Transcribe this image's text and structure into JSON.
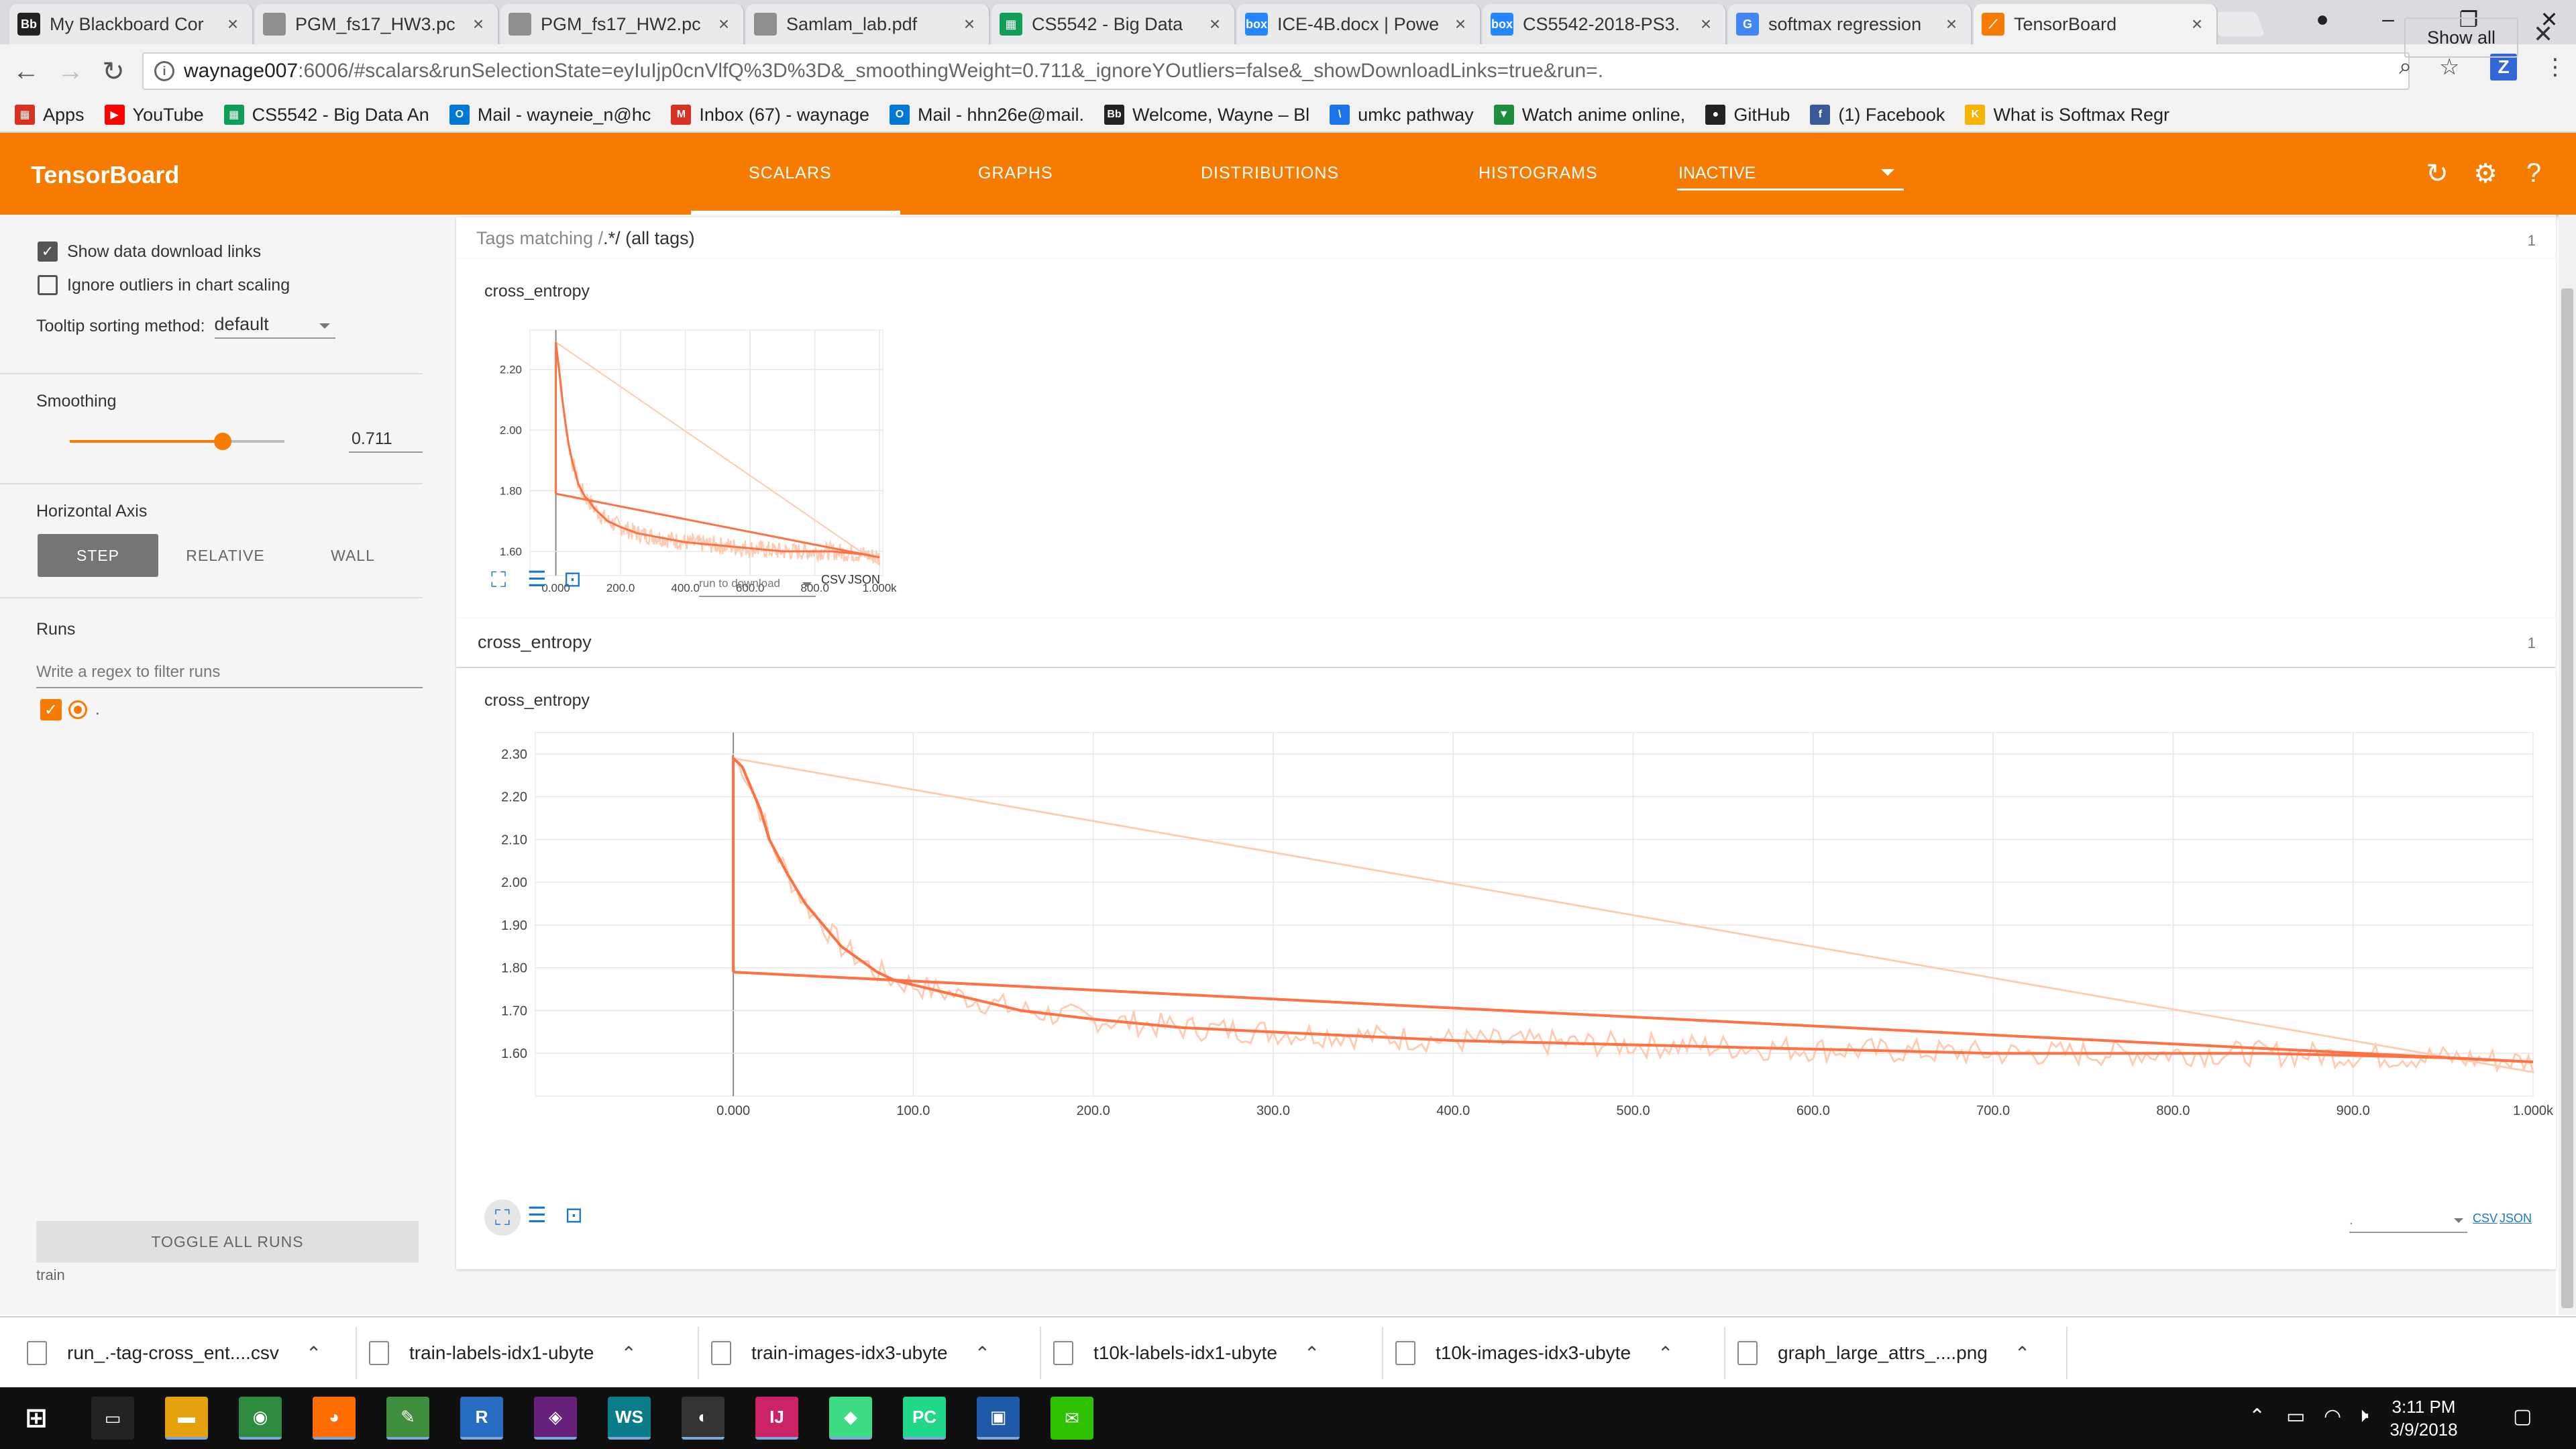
{
  "browser": {
    "tabs": [
      {
        "title": "My Blackboard Cor",
        "fav_text": "Bb",
        "fav_color": "#222222",
        "active": false
      },
      {
        "title": "PGM_fs17_HW3.pc",
        "fav_text": "",
        "fav_color": "#8e8e8e",
        "active": false
      },
      {
        "title": "PGM_fs17_HW2.pc",
        "fav_text": "",
        "fav_color": "#8e8e8e",
        "active": false
      },
      {
        "title": "Samlam_lab.pdf",
        "fav_text": "",
        "fav_color": "#8e8e8e",
        "active": false
      },
      {
        "title": "CS5542 - Big Data",
        "fav_text": "▦",
        "fav_color": "#0f9d58",
        "active": false
      },
      {
        "title": "ICE-4B.docx | Powe",
        "fav_text": "box",
        "fav_color": "#2486fc",
        "active": false
      },
      {
        "title": "CS5542-2018-PS3.",
        "fav_text": "box",
        "fav_color": "#2486fc",
        "active": false
      },
      {
        "title": "softmax regression",
        "fav_text": "G",
        "fav_color": "#4285f4",
        "active": false
      },
      {
        "title": "TensorBoard",
        "fav_text": "⟋",
        "fav_color": "#f57c00",
        "active": true
      }
    ],
    "url_host": "waynage007",
    "url_rest": ":6006/#scalars&runSelectionState=eyIuIjp0cnVlfQ%3D%3D&_smoothingWeight=0.711&_ignoreYOutliers=false&_showDownloadLinks=true&run=.",
    "bookmarks": [
      {
        "label": "Apps",
        "icon": "▦",
        "color": "#d93025"
      },
      {
        "label": "YouTube",
        "icon": "▶",
        "color": "#ff0000"
      },
      {
        "label": "CS5542 - Big Data An",
        "icon": "▦",
        "color": "#0f9d58"
      },
      {
        "label": "Mail - wayneie_n@hc",
        "icon": "O",
        "color": "#0078d4"
      },
      {
        "label": "Inbox (67) - waynage",
        "icon": "M",
        "color": "#d93025"
      },
      {
        "label": "Mail - hhn26e@mail.",
        "icon": "O",
        "color": "#0078d4"
      },
      {
        "label": "Welcome, Wayne – Bl",
        "icon": "Bb",
        "color": "#222222"
      },
      {
        "label": "umkc pathway",
        "icon": "\\",
        "color": "#1a73e8"
      },
      {
        "label": "Watch anime online,",
        "icon": "▼",
        "color": "#1e8e3e"
      },
      {
        "label": "GitHub",
        "icon": "●",
        "color": "#222222"
      },
      {
        "label": "(1) Facebook",
        "icon": "f",
        "color": "#3b5998"
      },
      {
        "label": "What is Softmax Regr",
        "icon": "K",
        "color": "#f4b400"
      }
    ]
  },
  "tensorboard": {
    "title": "TensorBoard",
    "tabs": [
      "SCALARS",
      "GRAPHS",
      "DISTRIBUTIONS",
      "HISTOGRAMS"
    ],
    "inactive_label": "INACTIVE"
  },
  "sidebar": {
    "show_download_links": "Show data download links",
    "ignore_outliers": "Ignore outliers in chart scaling",
    "tooltip_label": "Tooltip sorting method:",
    "tooltip_value": "default",
    "smoothing_label": "Smoothing",
    "smoothing_value": "0.711",
    "smoothing_fraction": 0.711,
    "horizontal_axis_label": "Horizontal Axis",
    "axis_options": [
      "STEP",
      "RELATIVE",
      "WALL"
    ],
    "runs_label": "Runs",
    "runs_filter_placeholder": "Write a regex to filter runs",
    "run_name": ".",
    "toggle_all": "TOGGLE ALL RUNS",
    "train_label": "train"
  },
  "main": {
    "tags_prefix": "Tags matching /",
    "tags_regex": ".*",
    "tags_suffix": "/ (all tags)",
    "tags_count": "1",
    "group_title": "cross_entropy",
    "group_count": "1",
    "small_chart_title": "cross_entropy",
    "large_chart_title": "cross_entropy",
    "run_to_download": "run to download",
    "large_select_value": ".",
    "csv": "CSV",
    "json": "JSON"
  },
  "chart_data": [
    {
      "type": "line",
      "title": "cross_entropy",
      "xlabel": "",
      "ylabel": "",
      "xlim": [
        -80,
        1010
      ],
      "ylim": [
        1.52,
        2.33
      ],
      "x_ticks": [
        "0.000",
        "200.0",
        "400.0",
        "600.0",
        "800.0",
        "1.000k"
      ],
      "y_ticks": [
        "1.60",
        "1.80",
        "2.00",
        "2.20"
      ],
      "grid": true,
      "series": [
        {
          "x": [
            0,
            10,
            20,
            30,
            40,
            50,
            60,
            70,
            80,
            90,
            100,
            120,
            140,
            160,
            180,
            200,
            250,
            300,
            350,
            400,
            450,
            500,
            550,
            600,
            650,
            700,
            750,
            800,
            850,
            900,
            950,
            1000
          ],
          "values": [
            2.29,
            2.2,
            2.1,
            2.02,
            1.95,
            1.9,
            1.86,
            1.82,
            1.8,
            1.78,
            1.77,
            1.74,
            1.72,
            1.7,
            1.69,
            1.68,
            1.66,
            1.65,
            1.64,
            1.63,
            1.625,
            1.62,
            1.615,
            1.61,
            1.605,
            1.6,
            1.6,
            1.6,
            1.6,
            1.595,
            1.59,
            1.58
          ]
        }
      ]
    },
    {
      "type": "line",
      "title": "cross_entropy",
      "xlabel": "",
      "ylabel": "",
      "xlim": [
        -110,
        1000
      ],
      "ylim": [
        1.5,
        2.35
      ],
      "x_ticks": [
        "0.000",
        "100.0",
        "200.0",
        "300.0",
        "400.0",
        "500.0",
        "600.0",
        "700.0",
        "800.0",
        "900.0",
        "1.000k"
      ],
      "y_ticks": [
        "1.60",
        "1.70",
        "1.80",
        "1.90",
        "2.00",
        "2.10",
        "2.20",
        "2.30"
      ],
      "grid": true,
      "series": [
        {
          "x": [
            0,
            5,
            10,
            15,
            20,
            30,
            40,
            50,
            60,
            70,
            80,
            90,
            100,
            120,
            140,
            160,
            180,
            200,
            250,
            300,
            350,
            400,
            450,
            500,
            550,
            600,
            650,
            700,
            750,
            800,
            850,
            900,
            950,
            1000
          ],
          "values": [
            2.29,
            2.27,
            2.22,
            2.17,
            2.1,
            2.02,
            1.95,
            1.9,
            1.85,
            1.82,
            1.79,
            1.77,
            1.76,
            1.74,
            1.72,
            1.7,
            1.69,
            1.68,
            1.66,
            1.65,
            1.64,
            1.63,
            1.625,
            1.62,
            1.615,
            1.61,
            1.605,
            1.6,
            1.6,
            1.6,
            1.6,
            1.595,
            1.59,
            1.58
          ]
        }
      ]
    }
  ],
  "downloads": [
    {
      "name": "run_.-tag-cross_ent....csv"
    },
    {
      "name": "train-labels-idx1-ubyte"
    },
    {
      "name": "train-images-idx3-ubyte"
    },
    {
      "name": "t10k-labels-idx1-ubyte"
    },
    {
      "name": "t10k-images-idx3-ubyte"
    },
    {
      "name": "graph_large_attrs_....png"
    }
  ],
  "show_all": "Show all",
  "taskbar": {
    "time": "3:11 PM",
    "date": "3/9/2018",
    "apps": [
      {
        "icon": "▭",
        "color": "#222222"
      },
      {
        "icon": "▬",
        "color": "#e5a00d"
      },
      {
        "icon": "◉",
        "color": "#2d8a3e"
      },
      {
        "icon": "◕",
        "color": "#ff6d00"
      },
      {
        "icon": "✎",
        "color": "#3e8e3e"
      },
      {
        "icon": "R",
        "color": "#276dc3"
      },
      {
        "icon": "◈",
        "color": "#68217a"
      },
      {
        "icon": "WS",
        "color": "#0a7e88"
      },
      {
        "icon": "◐",
        "color": "#333333"
      },
      {
        "icon": "IJ",
        "color": "#cc2266"
      },
      {
        "icon": "◆",
        "color": "#3ddc84"
      },
      {
        "icon": "PC",
        "color": "#21d789"
      },
      {
        "icon": "▣",
        "color": "#1e5aa8"
      },
      {
        "icon": "✉",
        "color": "#2dc100"
      }
    ]
  },
  "colors": {
    "accent": "#f57c00",
    "line_raw": "#ffcbb0",
    "line_smooth": "#ff7043"
  }
}
